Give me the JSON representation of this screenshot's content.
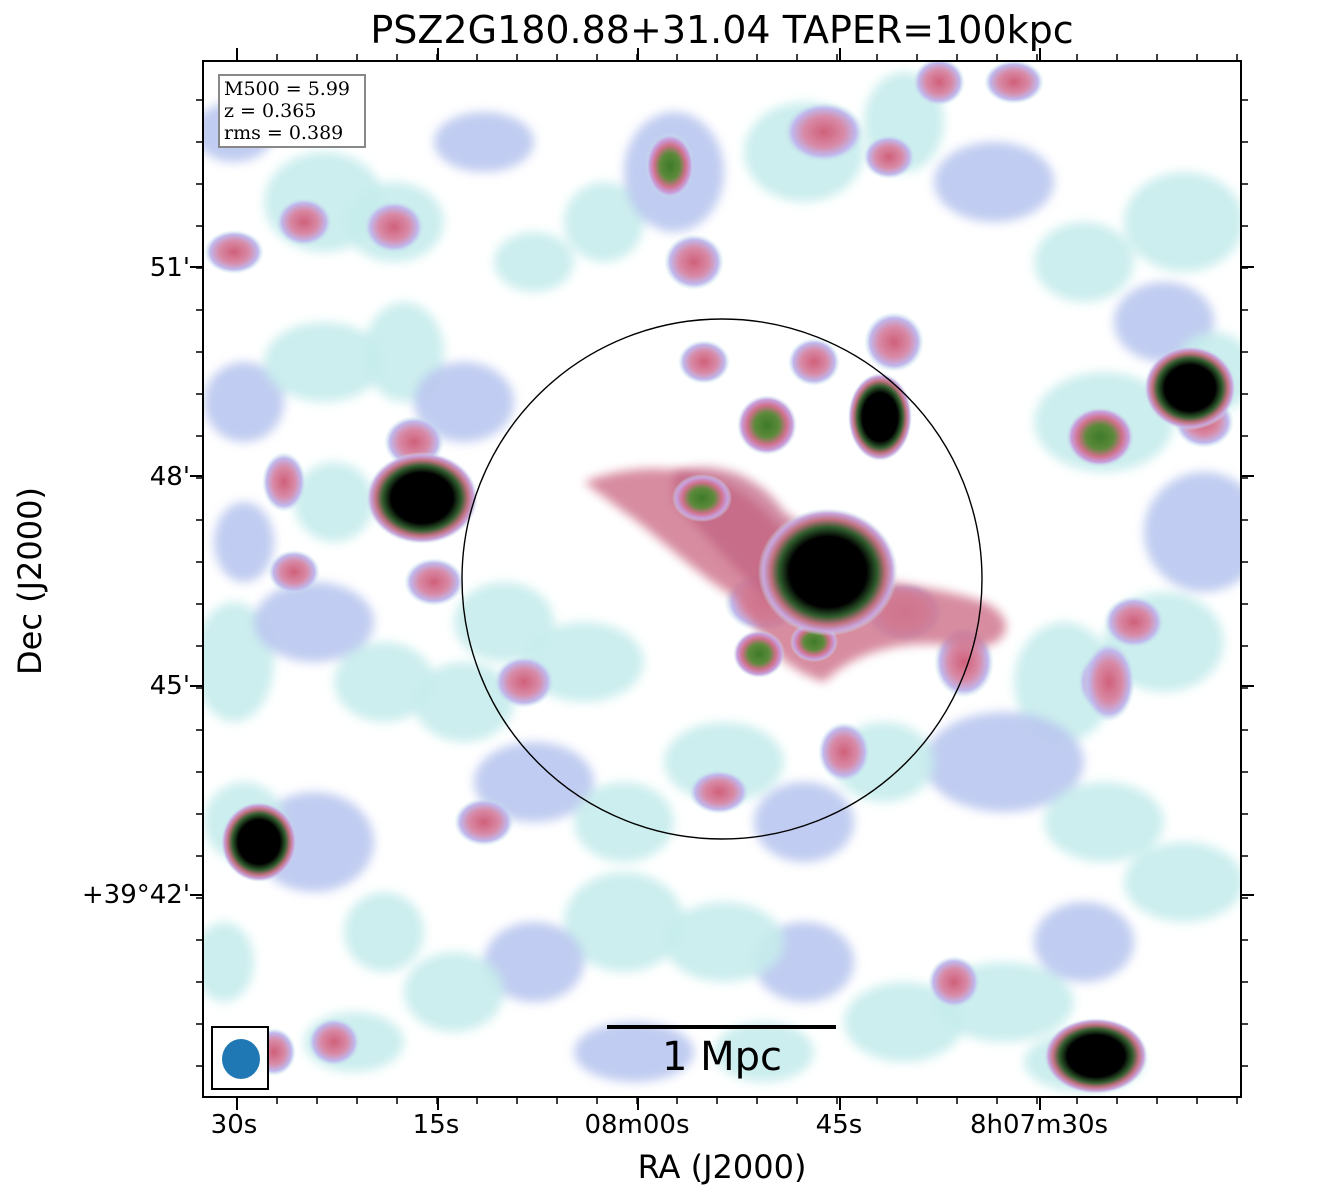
{
  "title": "PSZ2G180.88+31.04 TAPER=100kpc",
  "info": {
    "mass_line": "M500 = 5.99",
    "z_line": "z = 0.365",
    "rms_line": "rms = 0.389"
  },
  "axes": {
    "x_title": "RA (J2000)",
    "y_title": "Dec (J2000)",
    "x_ticks": [
      "30s",
      "15s",
      "08m00s",
      "45s",
      "8h07m30s"
    ],
    "y_ticks": [
      "51'",
      "48'",
      "45'",
      "+39°42'"
    ]
  },
  "scale_bar": {
    "label": "1 Mpc"
  },
  "colors": {
    "faint": "#c7ecec",
    "low": "#b9c7f0",
    "mid": "#c08ad8",
    "pink": "#d0708a",
    "green": "#3e7a2a",
    "core": "#000000",
    "beam": "#1f77b4"
  }
}
